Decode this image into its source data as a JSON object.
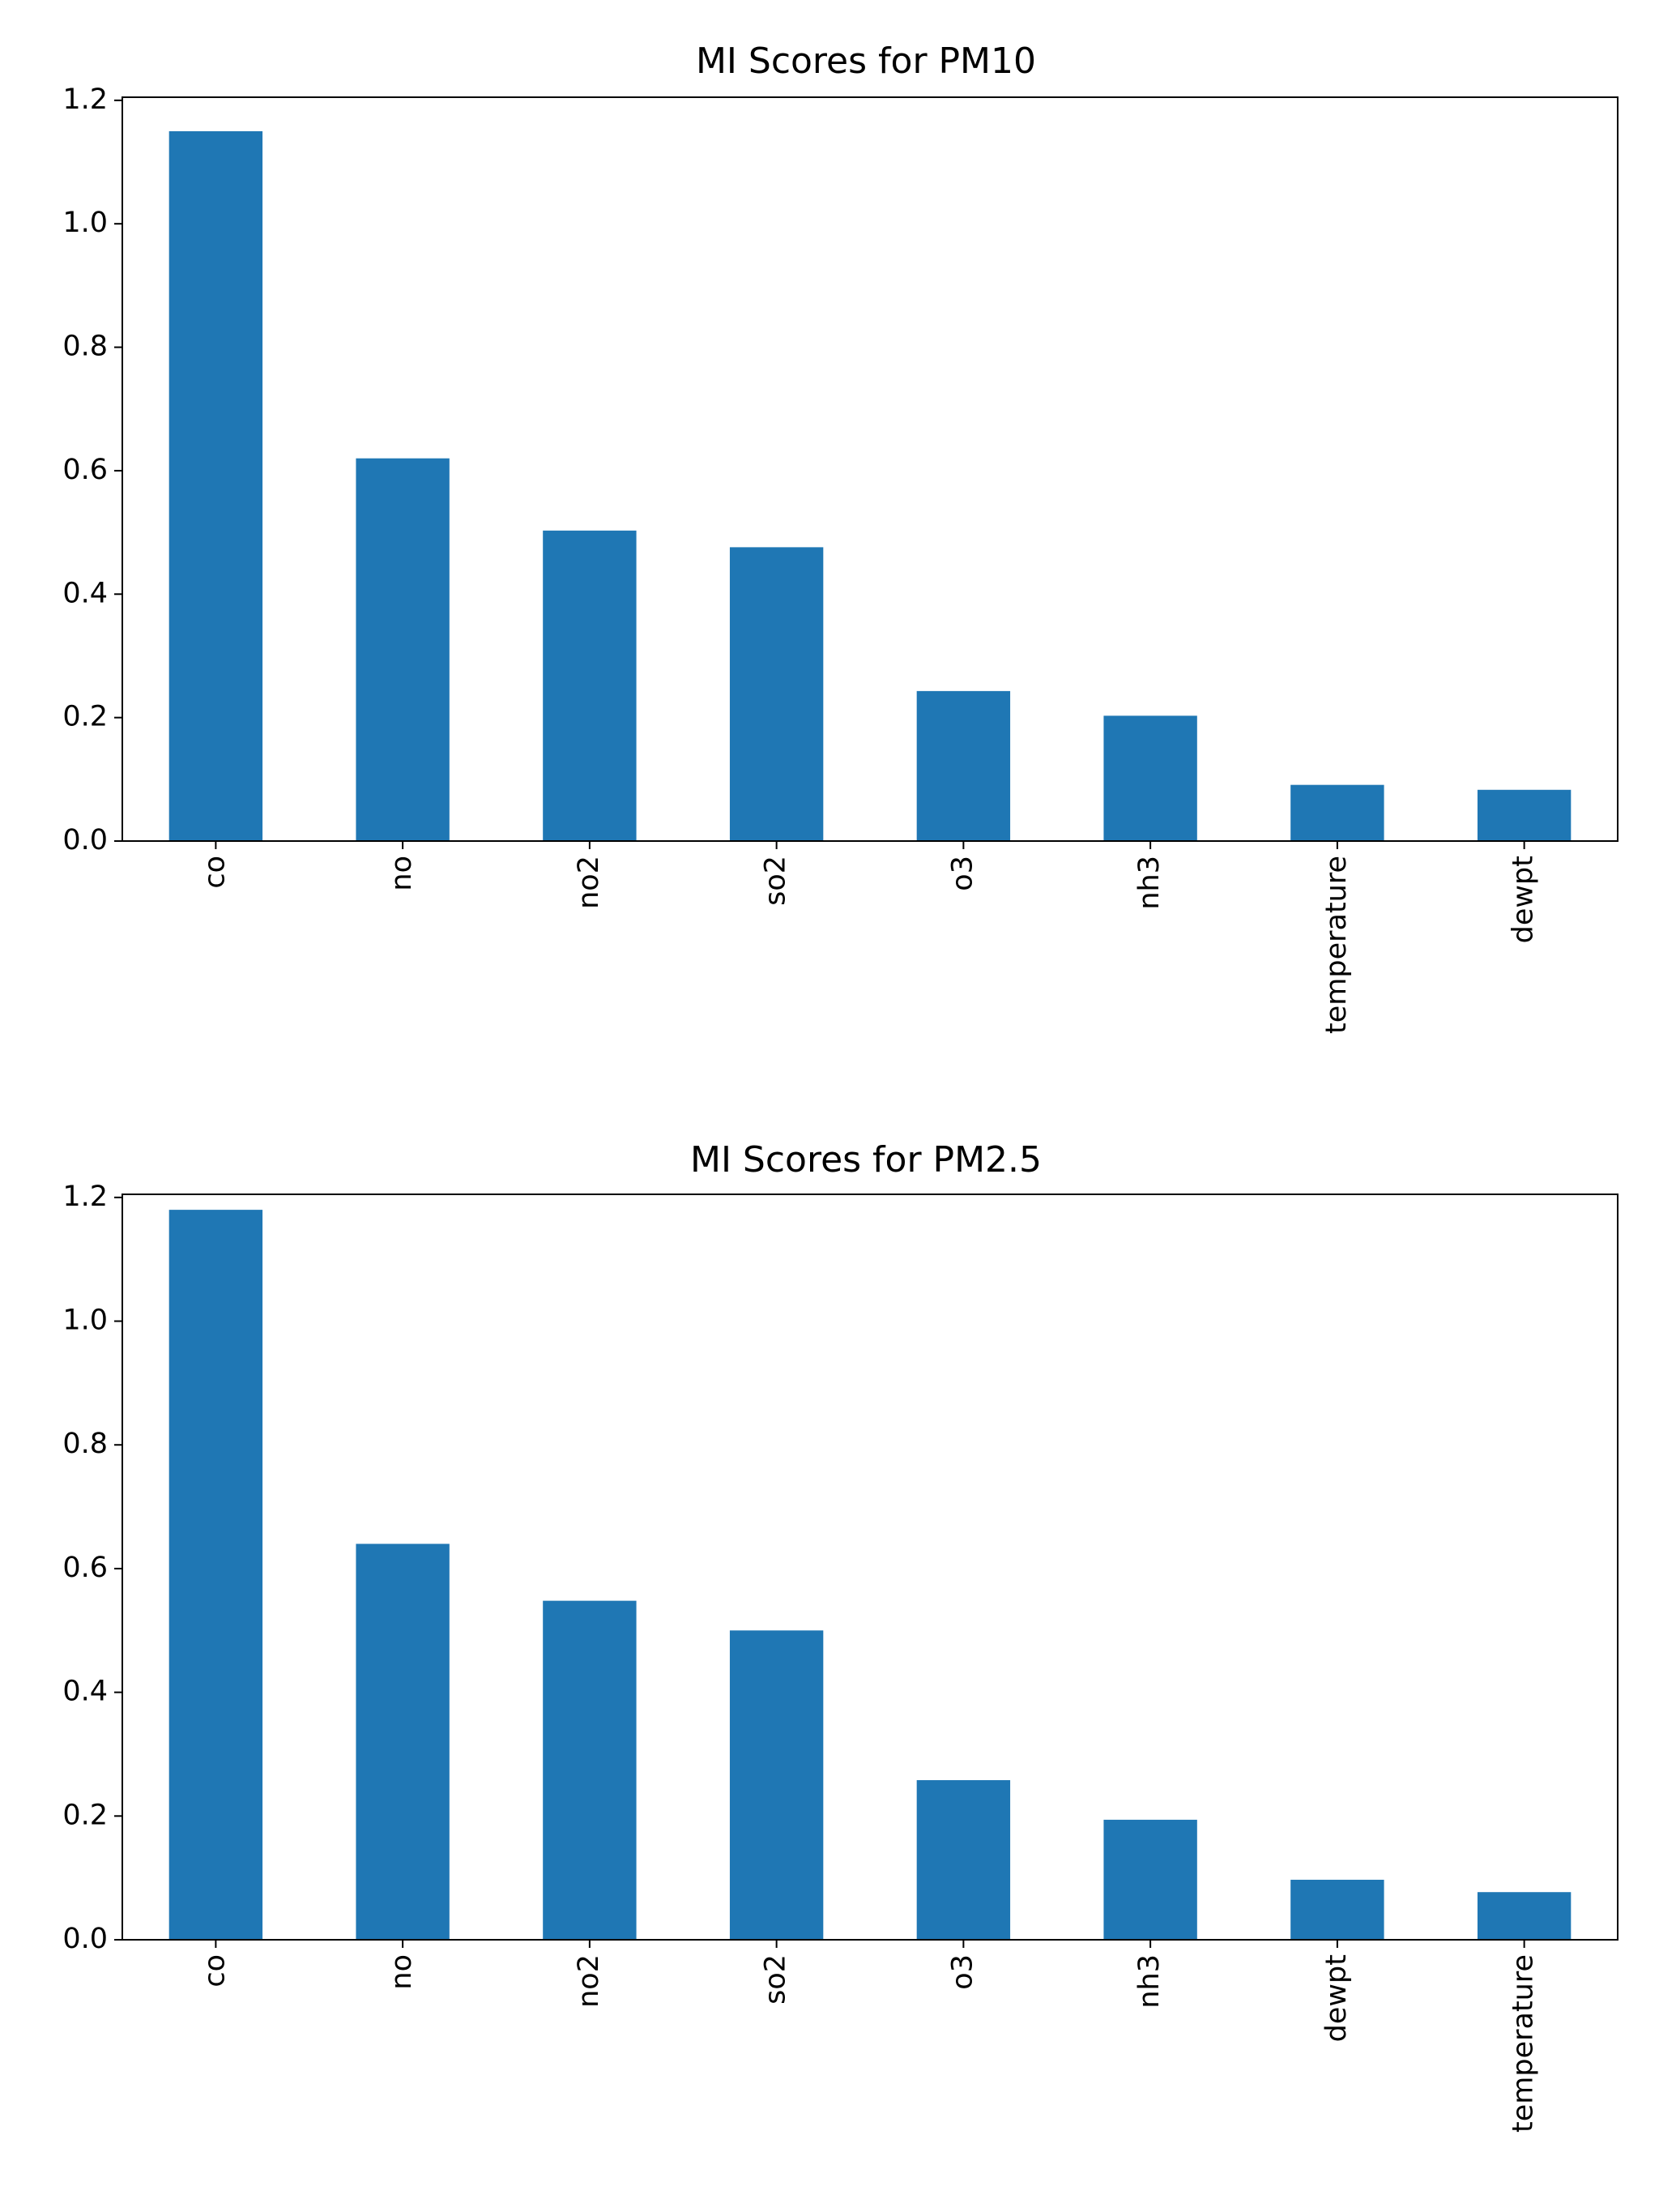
{
  "chart_data": [
    {
      "type": "bar",
      "title": "MI Scores for PM10",
      "xlabel": "",
      "ylabel": "",
      "categories": [
        "co",
        "no",
        "no2",
        "so2",
        "o3",
        "nh3",
        "temperature",
        "dewpt"
      ],
      "values": [
        1.15,
        0.62,
        0.503,
        0.476,
        0.243,
        0.203,
        0.091,
        0.083
      ],
      "ylim": [
        0,
        1.2
      ],
      "yticks": [
        "0.0",
        "0.2",
        "0.4",
        "0.6",
        "0.8",
        "1.0",
        "1.2"
      ],
      "color": "#1f77b4",
      "grid": false,
      "legend": "none"
    },
    {
      "type": "bar",
      "title": "MI Scores for PM2.5",
      "xlabel": "",
      "ylabel": "",
      "categories": [
        "co",
        "no",
        "no2",
        "so2",
        "o3",
        "nh3",
        "dewpt",
        "temperature"
      ],
      "values": [
        1.18,
        0.64,
        0.548,
        0.5,
        0.258,
        0.194,
        0.097,
        0.077
      ],
      "ylim": [
        0,
        1.2
      ],
      "yticks": [
        "0.0",
        "0.2",
        "0.4",
        "0.6",
        "0.8",
        "1.0",
        "1.2"
      ],
      "color": "#1f77b4",
      "grid": false,
      "legend": "none"
    }
  ]
}
